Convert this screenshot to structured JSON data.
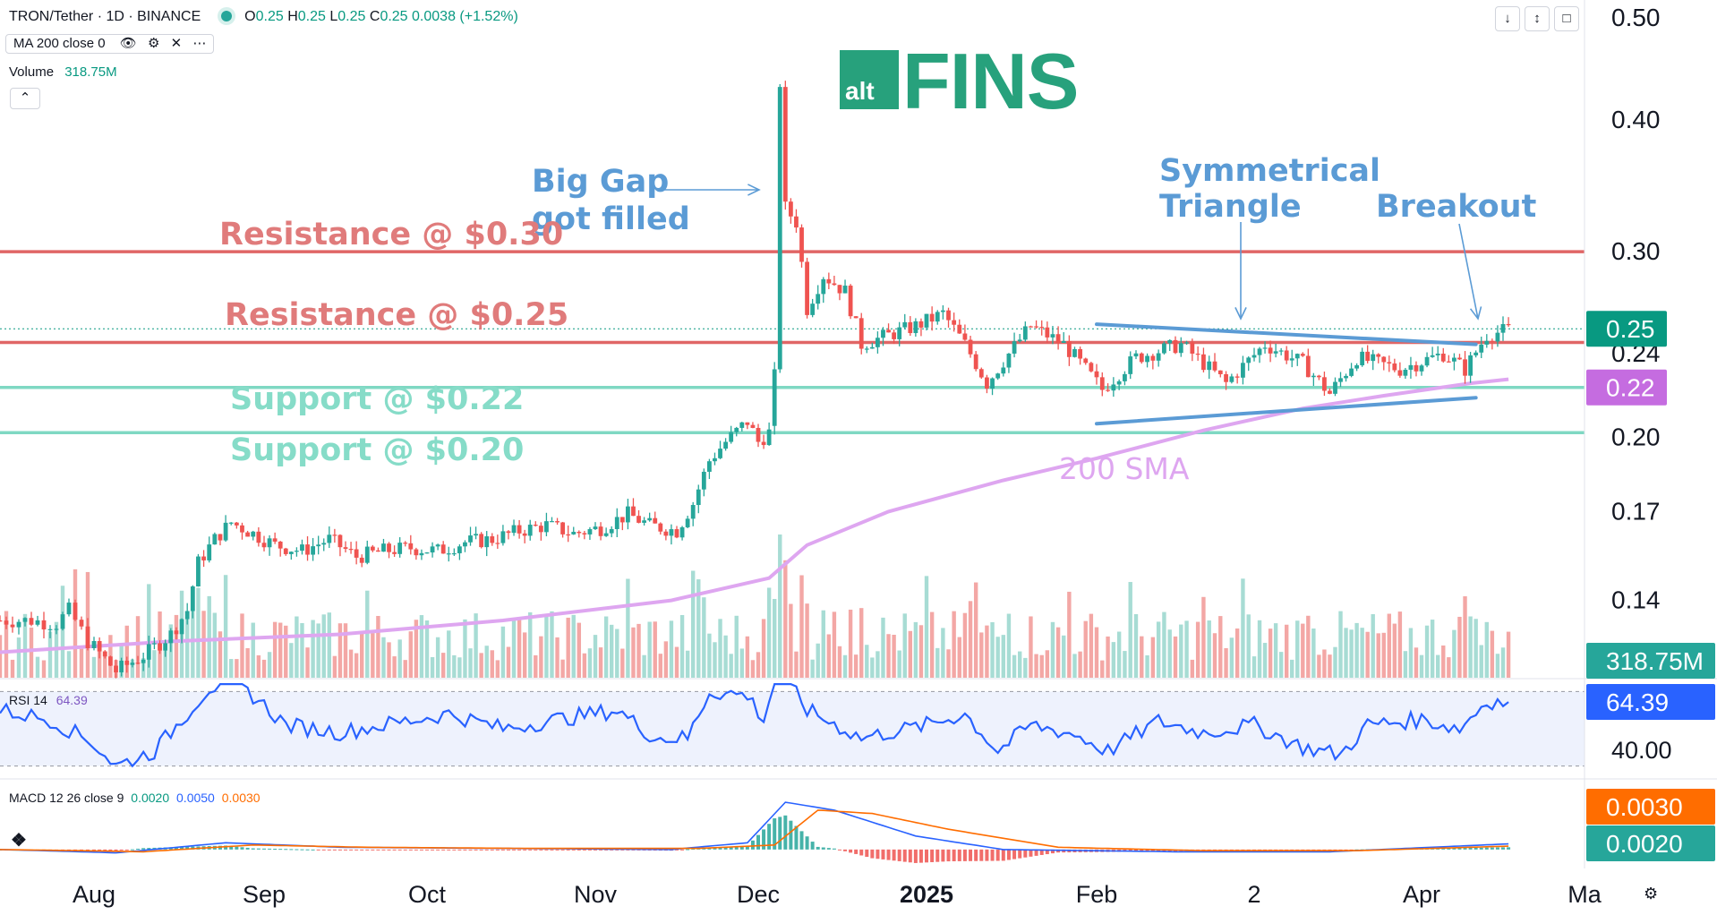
{
  "header": {
    "symbol_line": "TRON/Tether · 1D · BINANCE",
    "ohlc": {
      "o_label": "O",
      "o": "0.25",
      "h_label": "H",
      "h": "0.25",
      "l_label": "L",
      "l": "0.25",
      "c_label": "C",
      "c": "0.25",
      "change": "0.0038 (+1.52%)"
    },
    "ma_label": "MA 200 close 0",
    "volume_label": "Volume",
    "volume_value": "318.75M",
    "collapse_icon": "chevron-up-icon",
    "window_icons": [
      "arrow-down-icon",
      "collapse-icon",
      "maximize-icon"
    ]
  },
  "logo": {
    "small": "alt",
    "big": "FINS",
    "color": "#27a17c"
  },
  "colors": {
    "up": "#26a69a",
    "down": "#ef5350",
    "resistance": "#e06666",
    "support": "#7fd8c3",
    "sma": "#dea6f0",
    "trend": "#5b9bd5",
    "rsi": "#2962ff",
    "macd": "#2962ff",
    "signal": "#ff6d00"
  },
  "annotations": {
    "big_gap_1": "Big Gap",
    "big_gap_2": "got filled",
    "triangle_1": "Symmetrical",
    "triangle_2": "Triangle",
    "breakout": "Breakout",
    "res_030": "Resistance @ $0.30",
    "res_025": "Resistance @ $0.25",
    "sup_022": "Support @ $0.22",
    "sup_020": "Support @ $0.20",
    "sma_label": "200 SMA"
  },
  "indicators": {
    "rsi_label": "RSI 14",
    "rsi_value": "64.39",
    "rsi_axis_tick": "40.00",
    "macd_label": "MACD 12 26 close 9",
    "macd_v1": "0.0020",
    "macd_v2": "0.0050",
    "macd_v3": "0.0030"
  },
  "axis_badges": {
    "price": "0.25",
    "support": "0.22",
    "volume": "318.75M",
    "rsi": "64.39",
    "macd_signal": "0.0030",
    "macd_line": "0.0020"
  },
  "settings_icon": "gear-icon",
  "chart_data": {
    "type": "candlestick",
    "title": "TRON/Tether · 1D · BINANCE",
    "y_scale": "log",
    "ylim": [
      0.118,
      0.52
    ],
    "y_ticks": [
      "0.50",
      "0.40",
      "0.30",
      "0.24",
      "0.20",
      "0.17",
      "0.14"
    ],
    "x_ticks": [
      "Aug",
      "Sep",
      "Oct",
      "Nov",
      "Dec",
      "2025",
      "Feb",
      "2",
      "Apr",
      "Ma"
    ],
    "horizontal_levels": [
      {
        "name": "Resistance @ $0.30",
        "value": 0.3
      },
      {
        "name": "Resistance @ $0.25",
        "value": 0.246
      },
      {
        "name": "Support @ $0.22",
        "value": 0.223
      },
      {
        "name": "Support @ $0.20",
        "value": 0.202
      }
    ],
    "close_path": [
      [
        "2024-07-17",
        0.134
      ],
      [
        "2024-07-22",
        0.134
      ],
      [
        "2024-07-26",
        0.133
      ],
      [
        "2024-07-28",
        0.137
      ],
      [
        "2024-07-31",
        0.128
      ],
      [
        "2024-08-05",
        0.12
      ],
      [
        "2024-08-10",
        0.124
      ],
      [
        "2024-08-15",
        0.13
      ],
      [
        "2024-08-18",
        0.137
      ],
      [
        "2024-08-20",
        0.152
      ],
      [
        "2024-08-23",
        0.16
      ],
      [
        "2024-08-26",
        0.166
      ],
      [
        "2024-08-30",
        0.162
      ],
      [
        "2024-09-03",
        0.158
      ],
      [
        "2024-09-08",
        0.156
      ],
      [
        "2024-09-13",
        0.16
      ],
      [
        "2024-09-18",
        0.154
      ],
      [
        "2024-09-23",
        0.156
      ],
      [
        "2024-09-28",
        0.157
      ],
      [
        "2024-10-03",
        0.156
      ],
      [
        "2024-10-08",
        0.159
      ],
      [
        "2024-10-13",
        0.16
      ],
      [
        "2024-10-18",
        0.163
      ],
      [
        "2024-10-23",
        0.165
      ],
      [
        "2024-10-28",
        0.162
      ],
      [
        "2024-11-02",
        0.164
      ],
      [
        "2024-11-07",
        0.169
      ],
      [
        "2024-11-11",
        0.165
      ],
      [
        "2024-11-16",
        0.163
      ],
      [
        "2024-11-19",
        0.173
      ],
      [
        "2024-11-22",
        0.19
      ],
      [
        "2024-11-25",
        0.198
      ],
      [
        "2024-11-29",
        0.207
      ],
      [
        "2024-12-01",
        0.198
      ],
      [
        "2024-12-03",
        0.202
      ],
      [
        "2024-12-04",
        0.23
      ],
      [
        "2024-12-05",
        0.43
      ],
      [
        "2024-12-06",
        0.33
      ],
      [
        "2024-12-08",
        0.32
      ],
      [
        "2024-12-10",
        0.265
      ],
      [
        "2024-12-13",
        0.285
      ],
      [
        "2024-12-17",
        0.275
      ],
      [
        "2024-12-20",
        0.245
      ],
      [
        "2024-12-25",
        0.25
      ],
      [
        "2024-12-30",
        0.255
      ],
      [
        "2025-01-04",
        0.262
      ],
      [
        "2025-01-08",
        0.245
      ],
      [
        "2025-01-12",
        0.225
      ],
      [
        "2025-01-16",
        0.24
      ],
      [
        "2025-01-20",
        0.255
      ],
      [
        "2025-01-26",
        0.245
      ],
      [
        "2025-02-02",
        0.222
      ],
      [
        "2025-02-08",
        0.238
      ],
      [
        "2025-02-16",
        0.245
      ],
      [
        "2025-02-24",
        0.225
      ],
      [
        "2025-03-03",
        0.245
      ],
      [
        "2025-03-10",
        0.235
      ],
      [
        "2025-03-15",
        0.22
      ],
      [
        "2025-03-20",
        0.238
      ],
      [
        "2025-03-28",
        0.232
      ],
      [
        "2025-04-05",
        0.24
      ],
      [
        "2025-04-09",
        0.232
      ],
      [
        "2025-04-13",
        0.25
      ],
      [
        "2025-04-17",
        0.253
      ]
    ],
    "sma200": [
      [
        "2024-07-17",
        0.125
      ],
      [
        "2024-08-15",
        0.128
      ],
      [
        "2024-09-15",
        0.13
      ],
      [
        "2024-10-15",
        0.134
      ],
      [
        "2024-11-15",
        0.14
      ],
      [
        "2024-12-03",
        0.147
      ],
      [
        "2024-12-10",
        0.158
      ],
      [
        "2024-12-25",
        0.17
      ],
      [
        "2025-01-15",
        0.182
      ],
      [
        "2025-02-01",
        0.191
      ],
      [
        "2025-02-20",
        0.203
      ],
      [
        "2025-03-10",
        0.213
      ],
      [
        "2025-03-25",
        0.219
      ],
      [
        "2025-04-10",
        0.225
      ],
      [
        "2025-04-17",
        0.227
      ]
    ],
    "triangle": {
      "upper": [
        [
          "2025-02-01",
          0.256
        ],
        [
          "2025-04-11",
          0.245
        ]
      ],
      "lower": [
        [
          "2025-02-01",
          0.206
        ],
        [
          "2025-04-11",
          0.218
        ]
      ]
    },
    "volume_series": {
      "name": "Volume",
      "last": "318.75M"
    },
    "rsi": {
      "name": "RSI 14",
      "last": 64.39,
      "ylim": [
        25,
        75
      ],
      "points": [
        [
          "2024-07-17",
          60
        ],
        [
          "2024-07-25",
          55
        ],
        [
          "2024-08-01",
          42
        ],
        [
          "2024-08-05",
          30
        ],
        [
          "2024-08-12",
          38
        ],
        [
          "2024-08-22",
          72
        ],
        [
          "2024-08-28",
          73
        ],
        [
          "2024-09-05",
          52
        ],
        [
          "2024-09-15",
          48
        ],
        [
          "2024-09-25",
          53
        ],
        [
          "2024-10-05",
          58
        ],
        [
          "2024-10-15",
          50
        ],
        [
          "2024-10-25",
          55
        ],
        [
          "2024-11-05",
          60
        ],
        [
          "2024-11-12",
          45
        ],
        [
          "2024-11-18",
          45
        ],
        [
          "2024-11-22",
          70
        ],
        [
          "2024-11-29",
          68
        ],
        [
          "2024-12-02",
          55
        ],
        [
          "2024-12-05",
          85
        ],
        [
          "2024-12-10",
          60
        ],
        [
          "2024-12-20",
          45
        ],
        [
          "2025-01-01",
          52
        ],
        [
          "2025-01-08",
          58
        ],
        [
          "2025-01-14",
          38
        ],
        [
          "2025-01-20",
          52
        ],
        [
          "2025-01-28",
          47
        ],
        [
          "2025-02-03",
          38
        ],
        [
          "2025-02-12",
          54
        ],
        [
          "2025-02-20",
          48
        ],
        [
          "2025-03-01",
          52
        ],
        [
          "2025-03-10",
          40
        ],
        [
          "2025-03-17",
          36
        ],
        [
          "2025-03-22",
          52
        ],
        [
          "2025-04-01",
          55
        ],
        [
          "2025-04-08",
          50
        ],
        [
          "2025-04-13",
          65
        ],
        [
          "2025-04-17",
          64.39
        ]
      ]
    },
    "macd": {
      "name": "MACD 12 26 close 9",
      "ylim": [
        -0.02,
        0.05
      ],
      "macd_points": [
        [
          "2024-07-17",
          0.0
        ],
        [
          "2024-08-05",
          -0.003
        ],
        [
          "2024-08-25",
          0.006
        ],
        [
          "2024-09-15",
          0.002
        ],
        [
          "2024-10-15",
          0.001
        ],
        [
          "2024-11-15",
          0.0
        ],
        [
          "2024-11-29",
          0.006
        ],
        [
          "2024-12-06",
          0.042
        ],
        [
          "2024-12-15",
          0.035
        ],
        [
          "2024-12-30",
          0.012
        ],
        [
          "2025-01-15",
          0.0
        ],
        [
          "2025-02-15",
          -0.002
        ],
        [
          "2025-03-15",
          -0.002
        ],
        [
          "2025-04-17",
          0.005
        ]
      ],
      "signal_points": [
        [
          "2024-07-17",
          0.0
        ],
        [
          "2024-08-10",
          -0.002
        ],
        [
          "2024-08-30",
          0.004
        ],
        [
          "2024-09-20",
          0.002
        ],
        [
          "2024-10-20",
          0.001
        ],
        [
          "2024-11-20",
          0.001
        ],
        [
          "2024-12-04",
          0.004
        ],
        [
          "2024-12-12",
          0.035
        ],
        [
          "2024-12-22",
          0.032
        ],
        [
          "2025-01-05",
          0.018
        ],
        [
          "2025-01-25",
          0.002
        ],
        [
          "2025-02-20",
          -0.001
        ],
        [
          "2025-03-20",
          -0.001
        ],
        [
          "2025-04-17",
          0.003
        ]
      ]
    }
  }
}
